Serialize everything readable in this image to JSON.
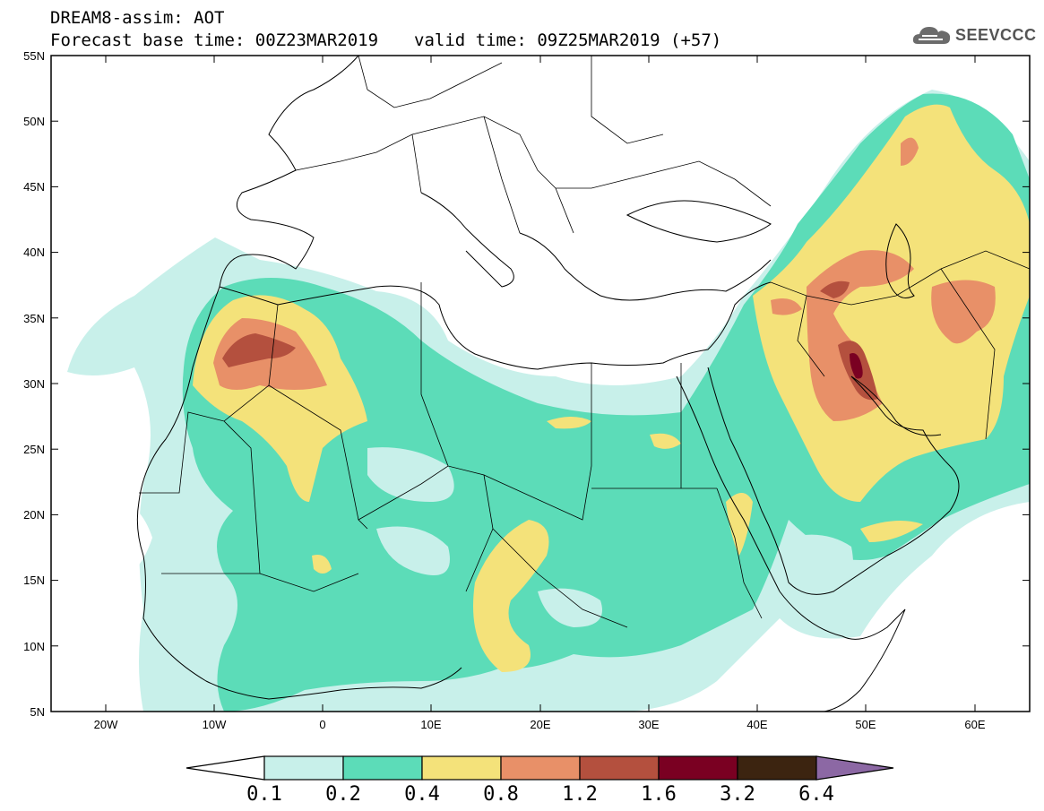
{
  "header": {
    "title_line1": "DREAM8-assim: AOT",
    "base_time": "Forecast base time: 00Z23MAR2019",
    "valid_time": "valid time: 09Z25MAR2019 (+57)"
  },
  "logo": {
    "text": "SEEVCCC",
    "icon": "cloud-icon"
  },
  "map": {
    "lat_ticks": [
      "55N",
      "50N",
      "45N",
      "40N",
      "35N",
      "30N",
      "25N",
      "20N",
      "15N",
      "10N",
      "5N"
    ],
    "lon_ticks": [
      "20W",
      "10W",
      "0",
      "10E",
      "20E",
      "30E",
      "40E",
      "50E",
      "60E"
    ]
  },
  "colorbar": {
    "labels": [
      "0.1",
      "0.2",
      "0.4",
      "0.8",
      "1.2",
      "1.6",
      "3.2",
      "6.4"
    ],
    "colors": [
      "#c8f0ea",
      "#5cdcb8",
      "#f4e27a",
      "#e89068",
      "#b4503e",
      "#7a0022",
      "#3c2410",
      "#8c68a4"
    ]
  }
}
